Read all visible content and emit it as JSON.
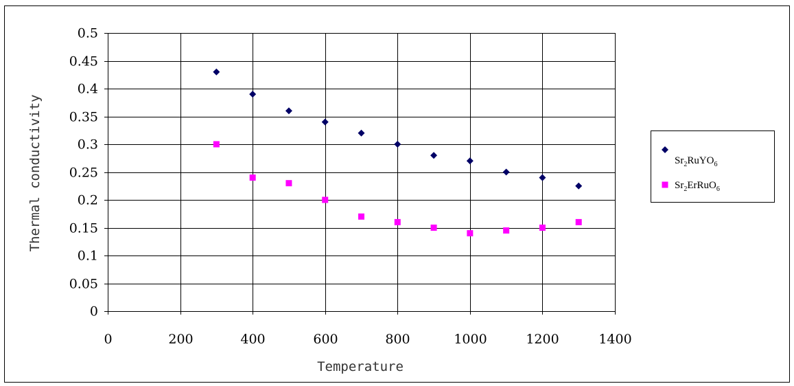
{
  "chart_data": {
    "type": "scatter",
    "title": "",
    "xlabel": "Temperature",
    "ylabel": "Thermal conductivity",
    "xlim": [
      0,
      1400
    ],
    "ylim": [
      0,
      0.5
    ],
    "x_ticks": [
      "0",
      "200",
      "400",
      "600",
      "800",
      "1000",
      "1200",
      "1400"
    ],
    "y_ticks": [
      "0",
      "0.05",
      "0.1",
      "0.15",
      "0.2",
      "0.25",
      "0.3",
      "0.35",
      "0.4",
      "0.45",
      "0.5"
    ],
    "grid": true,
    "legend_position": "right",
    "series": [
      {
        "name": "Sr2RuYO6",
        "name_base": "Sr",
        "name_sub1": "2",
        "name_mid": "RuYO",
        "name_sub2": "6",
        "marker": "diamond",
        "color": "#000066",
        "x": [
          300,
          400,
          500,
          600,
          700,
          800,
          900,
          1000,
          1100,
          1200,
          1300
        ],
        "y": [
          0.43,
          0.39,
          0.36,
          0.34,
          0.32,
          0.3,
          0.28,
          0.27,
          0.25,
          0.24,
          0.225
        ]
      },
      {
        "name": "Sr2ErRuO6",
        "name_base": "Sr",
        "name_sub1": "2",
        "name_mid": "ErRuO",
        "name_sub2": "6",
        "marker": "square",
        "color": "#ff00ff",
        "x": [
          300,
          400,
          500,
          600,
          700,
          800,
          900,
          1000,
          1100,
          1200,
          1300
        ],
        "y": [
          0.3,
          0.24,
          0.23,
          0.2,
          0.17,
          0.16,
          0.15,
          0.14,
          0.145,
          0.15,
          0.16
        ]
      }
    ]
  }
}
